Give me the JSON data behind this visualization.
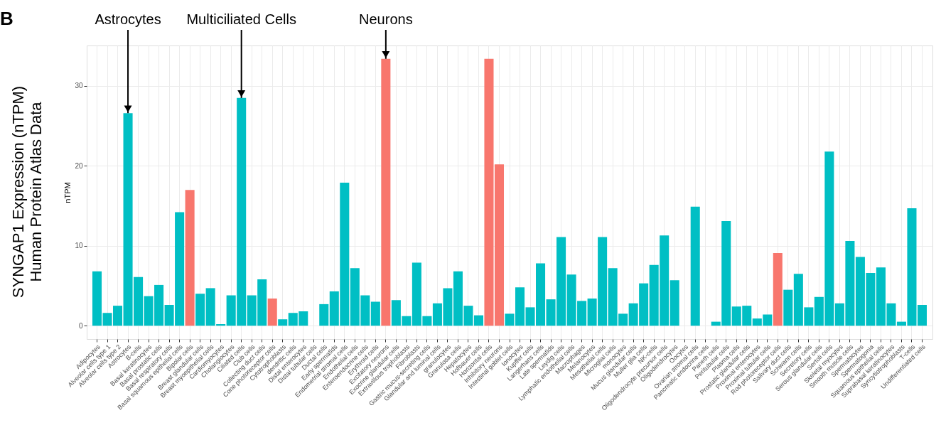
{
  "chart_data": {
    "type": "bar",
    "title": "SYNGAP1 Expression (nTPM)\nHuman Protein Atlas Data",
    "ylabel": "nTPM",
    "categories": [
      "Adipocytes",
      "Alveolar cells type 1",
      "Alveolar cells type 2",
      "Astrocytes",
      "B-cells",
      "Basal keratinocytes",
      "Basal prostatic cells",
      "Basal respiratory cells",
      "Basal squamous epithelial cells",
      "Bipolar cells",
      "Breast glandular cells",
      "Breast myoepithelial cells",
      "Cardiomyocytes",
      "Cholangiocytes",
      "Ciliated cells",
      "Club cells",
      "Collecting duct cells",
      "Cone photoreceptor cells",
      "Cytotrophoblasts",
      "dendritic cells",
      "Distal enterocytes",
      "Distal tubular cells",
      "Ductal cells",
      "Early spermatids",
      "Endometrial stromal cells",
      "Endothelial cells",
      "Enteroendocrine cells",
      "Erythroid cells",
      "Excitatory neurons",
      "Exocrine glandular cells",
      "Extravillous trophoblasts",
      "Fibroblasts",
      "Gastric mucus-secreting cells",
      "Glandular and luminal cells",
      "granulocytes",
      "Granulosa cells",
      "Hepatocytes",
      "Hofbauer cells",
      "Horizontal cells",
      "Inhibitory neurons",
      "Intestinal goblet cells",
      "Ionocytes",
      "Kupffer cells",
      "Langerhans cells",
      "Late spermatids",
      "Leydig cells",
      "Lymphatic endothelial cells",
      "Macrophages",
      "Melanocytes",
      "Mesothelial cells",
      "Microglial cells",
      "monocytes",
      "Mucus glandular cells",
      "Muller glia cells",
      "NK-cells",
      "Oligodendrocyte precursor cells",
      "Oligodendrocytes",
      "Oocytes",
      "Ovarian stromal cells",
      "Pancreatic endocrine cells",
      "Paneth cells",
      "Peritubular cells",
      "Plasma cells",
      "Prostatic glandular cells",
      "Proximal enterocytes",
      "Proximal tubular cells",
      "Rod photoreceptor cells",
      "Salivary duct cells",
      "Schwann cells",
      "Secretory cells",
      "Serous glandular cells",
      "Sertoli cells",
      "Skeletal myocytes",
      "Smooth muscle cells",
      "Spermatocytes",
      "Spermatogonia",
      "Squamous epithelial cells",
      "Suprabasal keratinocytes",
      "Syncytiotrophoblasts",
      "T-cells",
      "Undifferentiated cells"
    ],
    "values": [
      6.8,
      1.6,
      2.5,
      26.6,
      6.1,
      3.7,
      5.1,
      2.6,
      14.2,
      17.0,
      4.0,
      4.7,
      0.2,
      3.8,
      28.5,
      3.8,
      5.8,
      3.4,
      0.8,
      1.6,
      1.8,
      0,
      2.7,
      4.3,
      17.9,
      7.2,
      3.8,
      3.0,
      33.4,
      3.2,
      1.2,
      7.9,
      1.2,
      2.8,
      4.7,
      6.8,
      2.5,
      1.3,
      33.4,
      20.2,
      1.5,
      4.8,
      2.3,
      7.8,
      3.3,
      11.1,
      6.4,
      3.1,
      3.4,
      11.1,
      7.2,
      1.5,
      2.8,
      5.3,
      7.6,
      11.3,
      5.7,
      0,
      14.9,
      0,
      0.5,
      13.1,
      2.4,
      2.5,
      0.9,
      1.4,
      9.1,
      4.5,
      6.5,
      2.3,
      3.6,
      21.8,
      2.8,
      10.6,
      8.6,
      6.6,
      7.3,
      2.8,
      0.5,
      14.7,
      2.6
    ],
    "colors": [
      "#00bfc4",
      "#00bfc4",
      "#00bfc4",
      "#00bfc4",
      "#00bfc4",
      "#00bfc4",
      "#00bfc4",
      "#00bfc4",
      "#00bfc4",
      "#f8766d",
      "#00bfc4",
      "#00bfc4",
      "#00bfc4",
      "#00bfc4",
      "#00bfc4",
      "#00bfc4",
      "#00bfc4",
      "#f8766d",
      "#00bfc4",
      "#00bfc4",
      "#00bfc4",
      "#00bfc4",
      "#00bfc4",
      "#00bfc4",
      "#00bfc4",
      "#00bfc4",
      "#00bfc4",
      "#00bfc4",
      "#f8766d",
      "#00bfc4",
      "#00bfc4",
      "#00bfc4",
      "#00bfc4",
      "#00bfc4",
      "#00bfc4",
      "#00bfc4",
      "#00bfc4",
      "#00bfc4",
      "#f8766d",
      "#f8766d",
      "#00bfc4",
      "#00bfc4",
      "#00bfc4",
      "#00bfc4",
      "#00bfc4",
      "#00bfc4",
      "#00bfc4",
      "#00bfc4",
      "#00bfc4",
      "#00bfc4",
      "#00bfc4",
      "#00bfc4",
      "#00bfc4",
      "#00bfc4",
      "#00bfc4",
      "#00bfc4",
      "#00bfc4",
      "#00bfc4",
      "#00bfc4",
      "#00bfc4",
      "#00bfc4",
      "#00bfc4",
      "#00bfc4",
      "#00bfc4",
      "#00bfc4",
      "#00bfc4",
      "#f8766d",
      "#00bfc4",
      "#00bfc4",
      "#00bfc4",
      "#00bfc4",
      "#00bfc4",
      "#00bfc4",
      "#00bfc4",
      "#00bfc4",
      "#00bfc4",
      "#00bfc4",
      "#00bfc4",
      "#00bfc4",
      "#00bfc4",
      "#00bfc4"
    ],
    "ylim": [
      -1.67,
      35.07
    ],
    "yticks": [
      0,
      10,
      20,
      30
    ],
    "grid": true,
    "annotations": [
      "B",
      {
        "text": "Astrocytes",
        "x": "Astrocytes",
        "y": 26.6
      },
      {
        "text": "Multiciliated Cells",
        "x": "Ciliated cells",
        "y": 28.5
      },
      {
        "text": "Neurons",
        "x": "Excitatory neurons",
        "y": 33.4
      }
    ]
  }
}
